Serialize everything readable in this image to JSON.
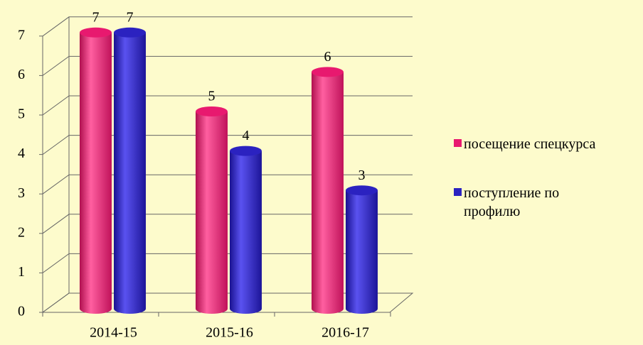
{
  "chart_data": {
    "type": "bar",
    "categories": [
      "2014-15",
      "2015-16",
      "2016-17"
    ],
    "series": [
      {
        "name": "посещение спецкурса",
        "color": "#e8196f",
        "values": [
          7,
          5,
          6
        ]
      },
      {
        "name": "поступление по профилю",
        "color": "#2b22c0",
        "values": [
          7,
          4,
          3
        ]
      }
    ],
    "ylim": [
      0,
      7
    ],
    "yticks": [
      0,
      1,
      2,
      3,
      4,
      5,
      6,
      7
    ],
    "grid": true,
    "legend": "right"
  }
}
